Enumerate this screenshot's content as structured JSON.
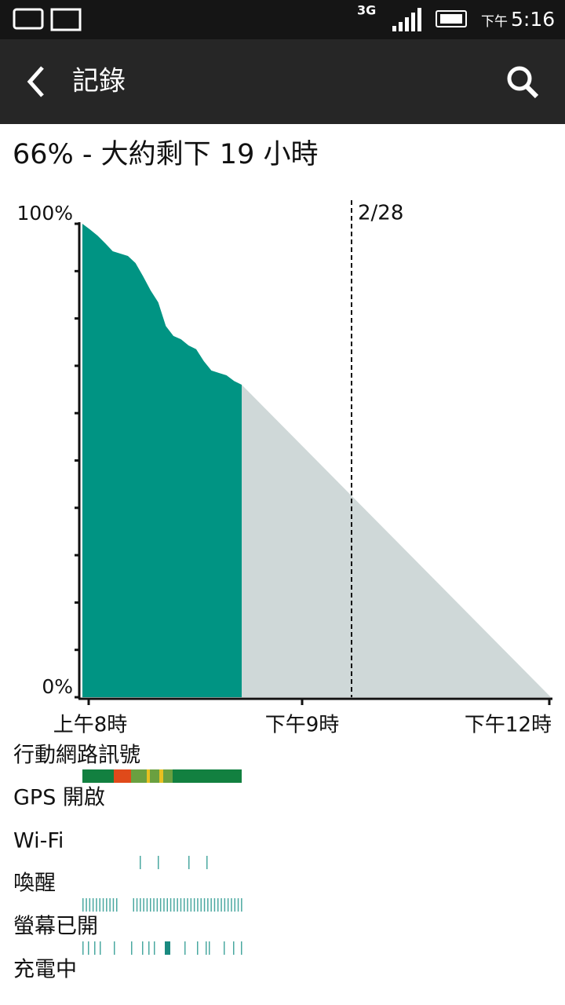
{
  "status_bar": {
    "network": "3G",
    "time_prefix": "下午",
    "time": "5:16"
  },
  "app_bar": {
    "title": "記錄"
  },
  "summary": "66% - 大約剩下 19 小時",
  "chart_data": {
    "type": "area",
    "values": [
      100,
      98.8,
      97.5,
      95.9,
      94.2,
      93.7,
      93.2,
      91.7,
      88.9,
      85.9,
      83.4,
      78.4,
      76.3,
      75.6,
      74.3,
      73.5,
      71,
      69,
      68.5,
      68,
      66.8,
      66
    ],
    "color": "#009483",
    "projection_color": "#cfd8d8",
    "ylim": [
      0,
      100
    ],
    "yticks": [
      {
        "value": 0,
        "label": "0%"
      },
      {
        "value": 100,
        "label": "100%"
      }
    ],
    "yminor": [
      10,
      20,
      30,
      40,
      50,
      60,
      70,
      80,
      90
    ],
    "x_labels": [
      "上午8時",
      "下午9時",
      "下午12時"
    ],
    "annotation": "2/28"
  },
  "rows": [
    "行動網路訊號",
    "GPS 開啟",
    "Wi-Fi",
    "喚醒",
    "螢幕已開",
    "充電中"
  ]
}
